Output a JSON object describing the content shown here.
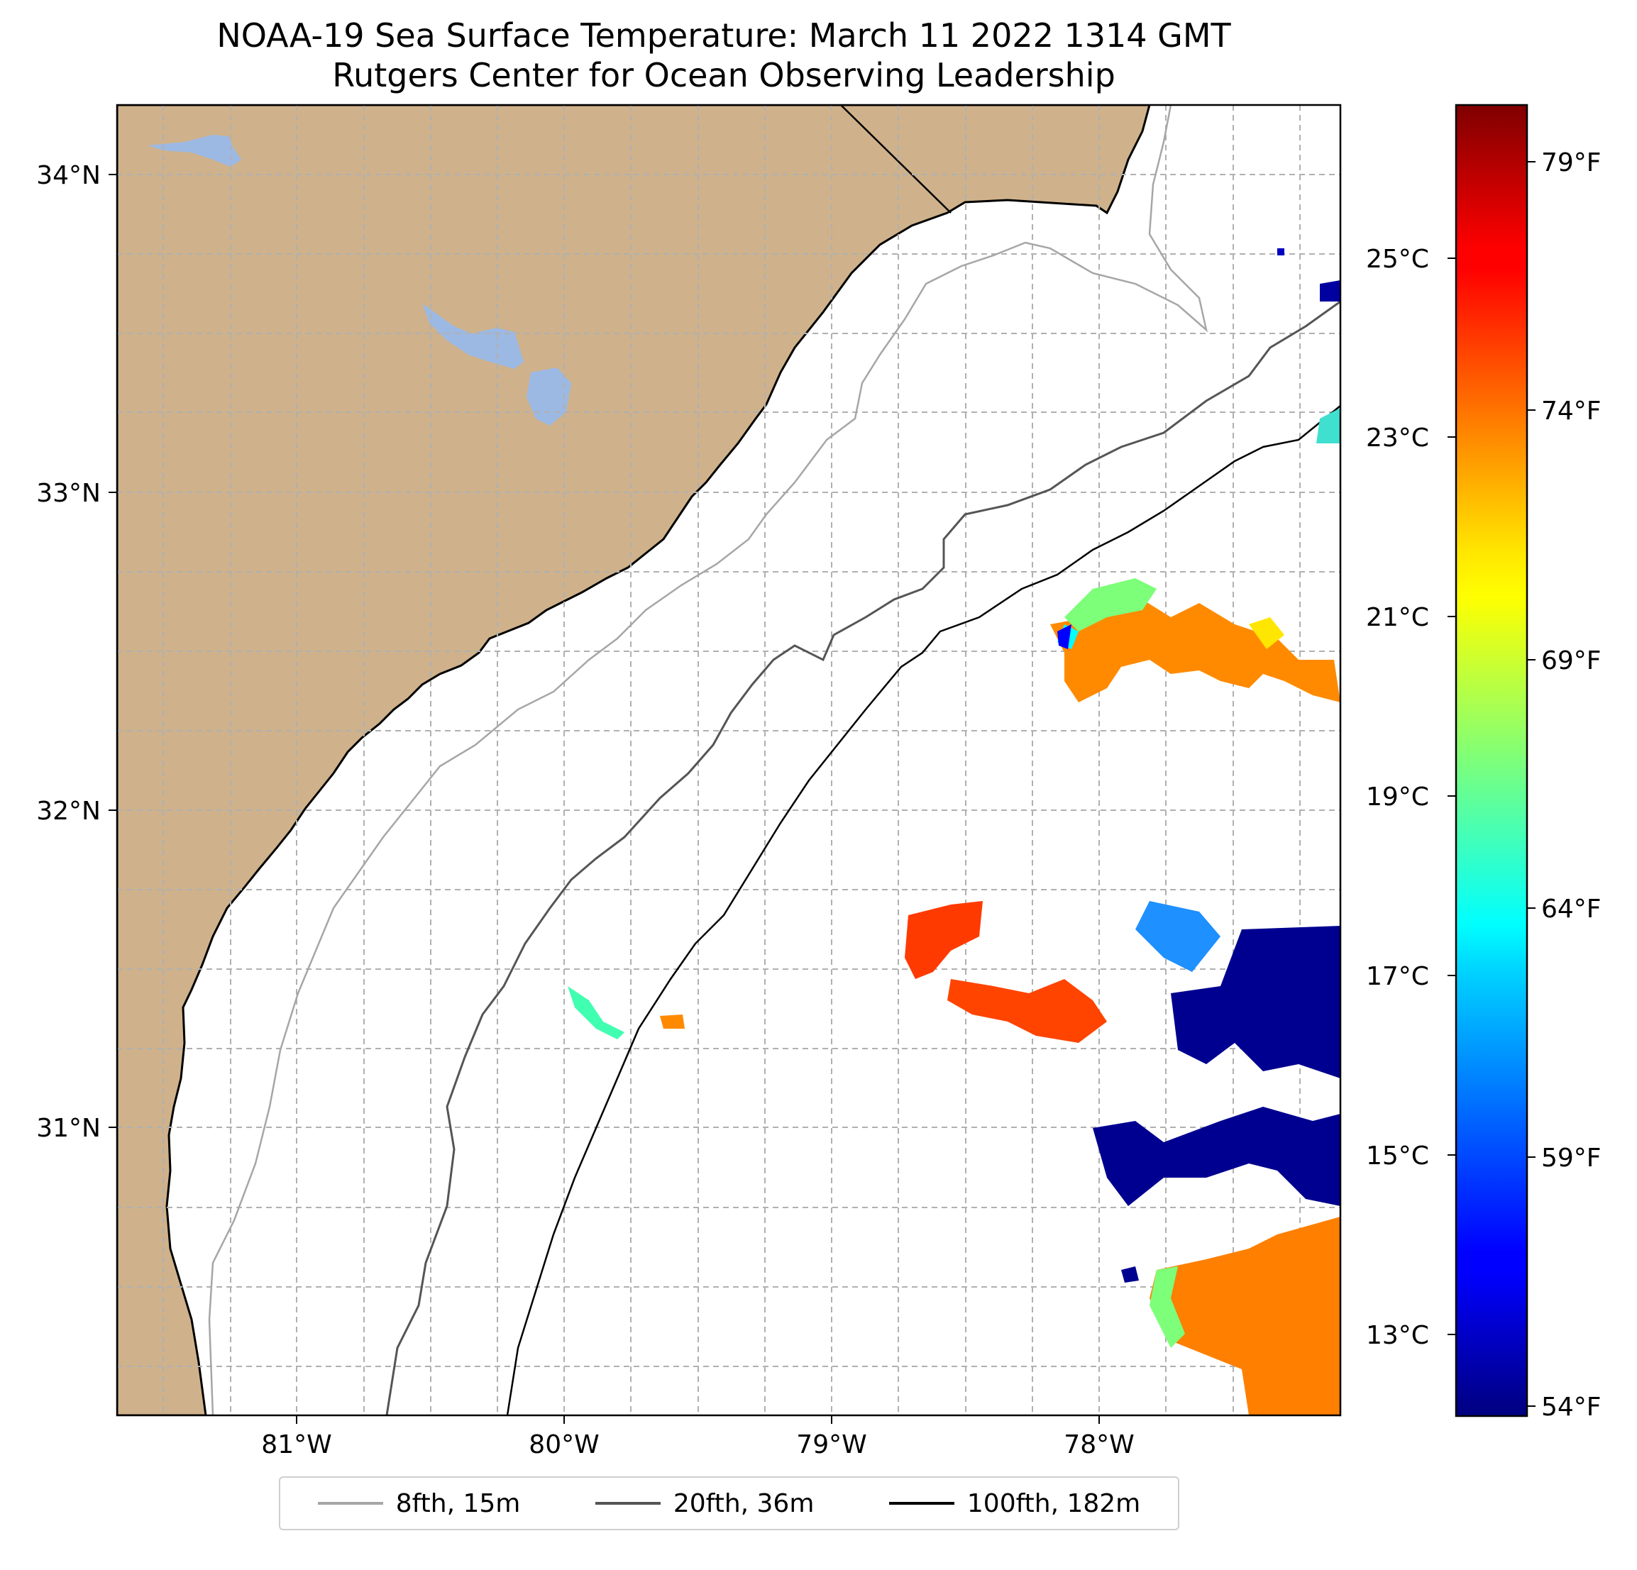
{
  "title": {
    "line1": "NOAA-19 Sea Surface Temperature: March 11 2022 1314 GMT",
    "line2": "Rutgers Center for Ocean Observing Leadership"
  },
  "map": {
    "lat_labels": [
      "34°N",
      "33°N",
      "32°N",
      "31°N"
    ],
    "lon_labels": [
      "81°W",
      "80°W",
      "79°W",
      "78°W"
    ],
    "colors": {
      "land": "#cfb28b",
      "lake": "#9cb9e4",
      "grid": "#b0b0b0",
      "ocean": "#ffffff"
    }
  },
  "colorbar": {
    "celsius_labels": [
      "25°C",
      "23°C",
      "21°C",
      "19°C",
      "17°C",
      "15°C",
      "13°C"
    ],
    "fahrenheit_labels": [
      "79°F",
      "74°F",
      "69°F",
      "64°F",
      "59°F",
      "54°F"
    ],
    "colormap": "jet"
  },
  "legend": {
    "items": [
      {
        "label": "8fth, 15m",
        "color": "#a6a6a6"
      },
      {
        "label": "20fth, 36m",
        "color": "#555555"
      },
      {
        "label": "100fth, 182m",
        "color": "#000000"
      }
    ]
  }
}
